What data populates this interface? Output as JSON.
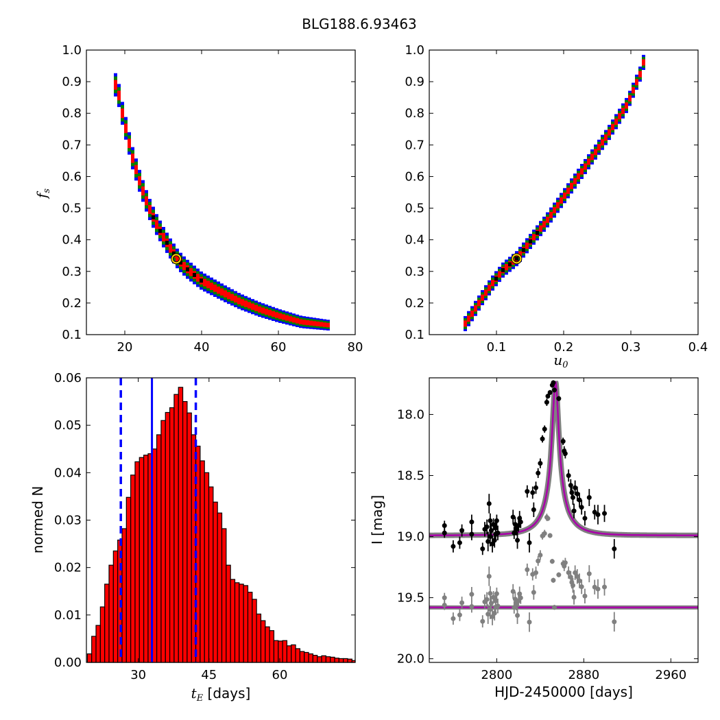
{
  "title": "BLG188.6.93463",
  "chart_data": [
    {
      "type": "heatmap",
      "panel": "fs-vs-tE",
      "xlabel": "",
      "ylabel": "f_s",
      "xlim": [
        10,
        80
      ],
      "ylim": [
        0.1,
        1.0
      ],
      "xticks": [
        20,
        40,
        60,
        80
      ],
      "yticks": [
        0.1,
        0.2,
        0.3,
        0.4,
        0.5,
        0.6,
        0.7,
        0.8,
        0.9,
        1.0
      ],
      "confidence_colors": [
        "#0000ff",
        "#008000",
        "#ff0000",
        "#000000"
      ],
      "marker_color": "#ffd700",
      "best_fit": {
        "x": 33.4,
        "y": 0.34
      },
      "ridge": [
        [
          18.0,
          0.89
        ],
        [
          19.0,
          0.82
        ],
        [
          20.5,
          0.74
        ],
        [
          22.0,
          0.66
        ],
        [
          24.0,
          0.58
        ],
        [
          26.0,
          0.51
        ],
        [
          28.0,
          0.455
        ],
        [
          30.0,
          0.41
        ],
        [
          32.0,
          0.37
        ],
        [
          34.0,
          0.335
        ],
        [
          36.0,
          0.31
        ],
        [
          38.0,
          0.29
        ],
        [
          40.0,
          0.27
        ],
        [
          43.0,
          0.25
        ],
        [
          46.0,
          0.23
        ],
        [
          50.0,
          0.205
        ],
        [
          55.0,
          0.18
        ],
        [
          60.0,
          0.16
        ],
        [
          66.0,
          0.14
        ],
        [
          73.0,
          0.13
        ]
      ]
    },
    {
      "type": "heatmap",
      "panel": "fs-vs-u0",
      "xlabel": "u_0",
      "ylabel": "",
      "xlim": [
        0.0,
        0.4
      ],
      "ylim": [
        0.1,
        1.0
      ],
      "xticks": [
        0.1,
        0.2,
        0.3,
        0.4
      ],
      "yticks": [
        0.1,
        0.2,
        0.3,
        0.4,
        0.5,
        0.6,
        0.7,
        0.8,
        0.9,
        1.0
      ],
      "best_fit": {
        "x": 0.13,
        "y": 0.34
      },
      "ridge": [
        [
          0.052,
          0.13
        ],
        [
          0.065,
          0.17
        ],
        [
          0.08,
          0.22
        ],
        [
          0.095,
          0.265
        ],
        [
          0.11,
          0.305
        ],
        [
          0.13,
          0.34
        ],
        [
          0.145,
          0.38
        ],
        [
          0.16,
          0.42
        ],
        [
          0.175,
          0.46
        ],
        [
          0.19,
          0.505
        ],
        [
          0.205,
          0.55
        ],
        [
          0.22,
          0.595
        ],
        [
          0.235,
          0.64
        ],
        [
          0.25,
          0.685
        ],
        [
          0.265,
          0.73
        ],
        [
          0.28,
          0.78
        ],
        [
          0.295,
          0.83
        ],
        [
          0.305,
          0.88
        ],
        [
          0.315,
          0.93
        ],
        [
          0.32,
          0.97
        ]
      ]
    },
    {
      "type": "bar",
      "panel": "tE-histogram",
      "xlabel": "t_E [days]",
      "ylabel": "normed N",
      "xlim": [
        19,
        76
      ],
      "ylim": [
        0.0,
        0.06
      ],
      "xticks": [
        30,
        45,
        60
      ],
      "yticks": [
        0.0,
        0.01,
        0.02,
        0.03,
        0.04,
        0.05,
        0.06
      ],
      "bar_color": "#ff0000",
      "bin_start": 19.2,
      "bin_width": 0.92,
      "values": [
        0.0018,
        0.0055,
        0.0078,
        0.0117,
        0.0165,
        0.0205,
        0.0235,
        0.0258,
        0.0282,
        0.0348,
        0.0395,
        0.0423,
        0.0432,
        0.0437,
        0.044,
        0.045,
        0.048,
        0.051,
        0.0527,
        0.0537,
        0.0565,
        0.058,
        0.055,
        0.0526,
        0.048,
        0.0456,
        0.0425,
        0.04,
        0.037,
        0.0338,
        0.0315,
        0.0282,
        0.0205,
        0.0175,
        0.0168,
        0.0165,
        0.0162,
        0.0148,
        0.0133,
        0.0102,
        0.0088,
        0.0075,
        0.0067,
        0.0046,
        0.0045,
        0.0046,
        0.0035,
        0.0037,
        0.0029,
        0.0023,
        0.0021,
        0.0018,
        0.0015,
        0.0012,
        0.0014,
        0.0012,
        0.0011,
        0.0009,
        0.0008,
        0.0008,
        0.0007,
        0.0004
      ],
      "median_line": 32.9,
      "interval_lines": [
        26.3,
        42.2
      ],
      "line_color": "#0000ff"
    },
    {
      "type": "scatter",
      "panel": "light-curve",
      "xlabel": "HJD-2450000 [days]",
      "ylabel": "I [mag]",
      "xlim": [
        2738,
        2985
      ],
      "ylim": [
        20.03,
        17.7
      ],
      "xticks": [
        2800,
        2880,
        2960
      ],
      "yticks": [
        18.0,
        18.5,
        19.0,
        19.5,
        20.0
      ],
      "model_color": "#aa00aa",
      "model_band_color": "#808080",
      "model": {
        "t0": 2854,
        "base": 18.99,
        "peak": 17.73,
        "width": 7.5
      },
      "residual_baseline": 19.58,
      "data_color": "#000000",
      "residual_color": "#808080",
      "points": [
        [
          2752,
          18.91,
          0.04
        ],
        [
          2752,
          18.97,
          0.04
        ],
        [
          2760,
          19.08,
          0.05
        ],
        [
          2766,
          19.05,
          0.05
        ],
        [
          2768,
          18.95,
          0.05
        ],
        [
          2777,
          18.88,
          0.06
        ],
        [
          2777,
          18.98,
          0.05
        ],
        [
          2787,
          19.1,
          0.05
        ],
        [
          2789,
          18.94,
          0.06
        ],
        [
          2791,
          18.92,
          0.06
        ],
        [
          2792,
          19.04,
          0.08
        ],
        [
          2793,
          18.73,
          0.08
        ],
        [
          2794,
          18.87,
          0.06
        ],
        [
          2794,
          19.0,
          0.08
        ],
        [
          2795,
          18.95,
          0.06
        ],
        [
          2796,
          19.06,
          0.07
        ],
        [
          2797,
          18.9,
          0.05
        ],
        [
          2798,
          19.03,
          0.06
        ],
        [
          2799,
          18.93,
          0.06
        ],
        [
          2799,
          18.98,
          0.05
        ],
        [
          2800,
          18.87,
          0.05
        ],
        [
          2801,
          18.97,
          0.06
        ],
        [
          2815,
          18.84,
          0.06
        ],
        [
          2816,
          18.97,
          0.05
        ],
        [
          2817,
          18.9,
          0.06
        ],
        [
          2818,
          18.94,
          0.05
        ],
        [
          2819,
          19.03,
          0.07
        ],
        [
          2820,
          18.91,
          0.05
        ],
        [
          2821,
          18.85,
          0.06
        ],
        [
          2822,
          18.88,
          0.05
        ],
        [
          2828,
          18.63,
          0.05
        ],
        [
          2830,
          19.05,
          0.08
        ],
        [
          2833,
          18.64,
          0.05
        ],
        [
          2834,
          18.78,
          0.06
        ],
        [
          2836,
          18.6,
          0.05
        ],
        [
          2838,
          18.48,
          0.04
        ],
        [
          2840,
          18.4,
          0.04
        ],
        [
          2842,
          18.2,
          0.03
        ],
        [
          2844,
          18.12,
          0.03
        ],
        [
          2846,
          17.9,
          0.03
        ],
        [
          2847,
          17.85,
          0.02
        ],
        [
          2849,
          17.82,
          0.02
        ],
        [
          2851,
          17.76,
          0.02
        ],
        [
          2852,
          17.74,
          0.02
        ],
        [
          2853,
          17.8,
          0.02
        ],
        [
          2857,
          17.87,
          0.02
        ],
        [
          2861,
          18.22,
          0.03
        ],
        [
          2862,
          18.3,
          0.04
        ],
        [
          2863,
          18.32,
          0.04
        ],
        [
          2866,
          18.5,
          0.05
        ],
        [
          2868,
          18.58,
          0.05
        ],
        [
          2869,
          18.64,
          0.05
        ],
        [
          2870,
          18.68,
          0.06
        ],
        [
          2871,
          18.79,
          0.06
        ],
        [
          2872,
          18.6,
          0.06
        ],
        [
          2874,
          18.65,
          0.06
        ],
        [
          2876,
          18.7,
          0.06
        ],
        [
          2878,
          18.76,
          0.06
        ],
        [
          2881,
          18.85,
          0.06
        ],
        [
          2885,
          18.68,
          0.07
        ],
        [
          2890,
          18.8,
          0.06
        ],
        [
          2893,
          18.82,
          0.08
        ],
        [
          2899,
          18.81,
          0.07
        ],
        [
          2908,
          19.1,
          0.08
        ]
      ]
    }
  ]
}
